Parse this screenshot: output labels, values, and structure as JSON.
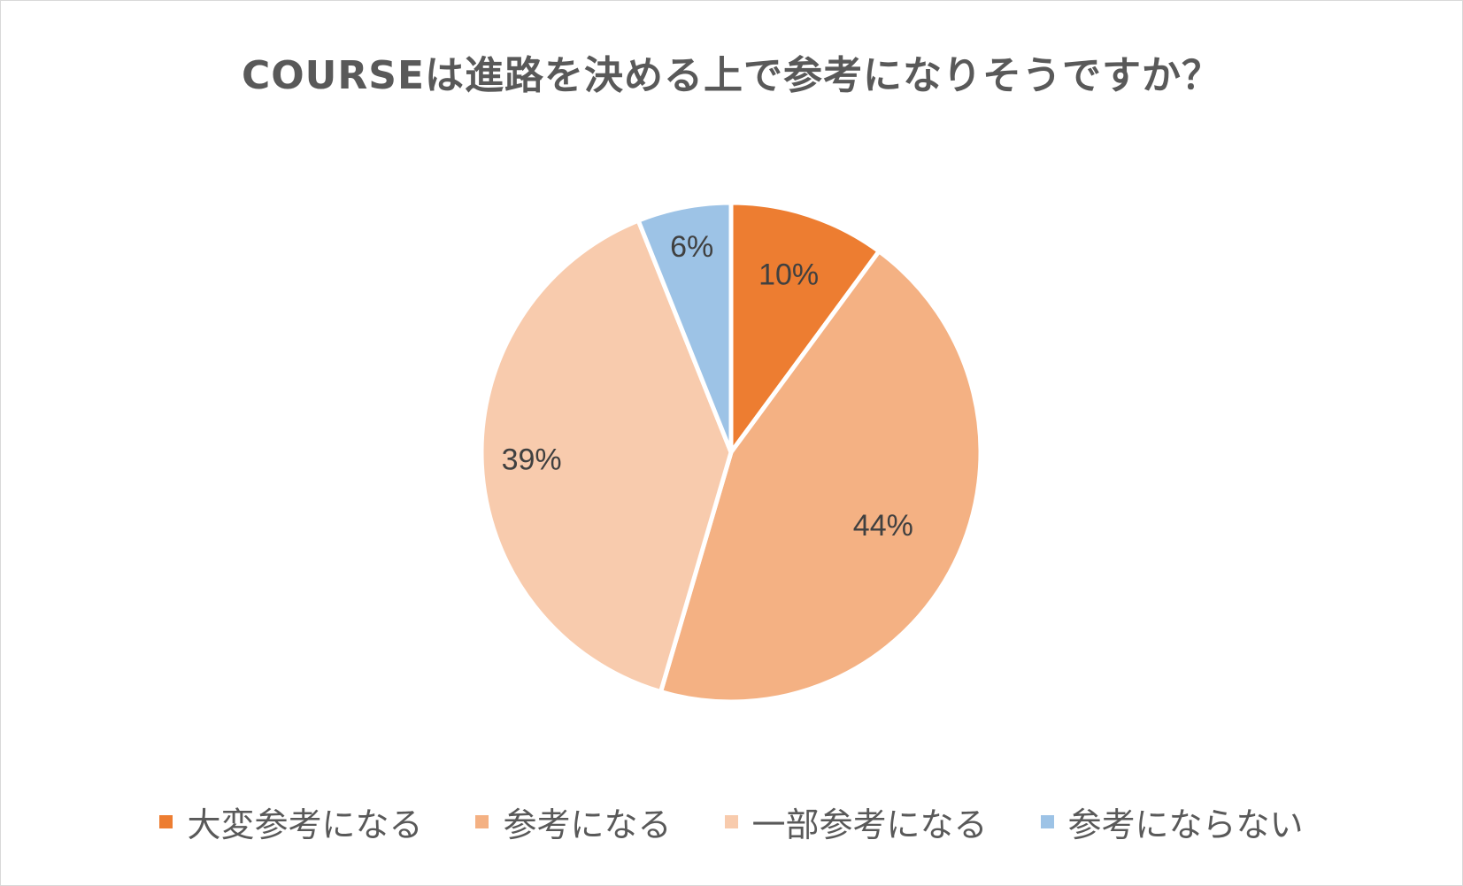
{
  "chart_data": {
    "type": "pie",
    "title": "COURSEは進路を決める上で参考になりそうですか？",
    "categories": [
      "大変参考になる",
      "参考になる",
      "一部参考になる",
      "参考にならない"
    ],
    "values": [
      10,
      44,
      39,
      6
    ],
    "labels": [
      "10%",
      "44%",
      "39%",
      "6%"
    ],
    "colors": [
      "#ED7D31",
      "#F4B183",
      "#F8CBAD",
      "#9DC3E6"
    ],
    "start_angle": "12 o'clock",
    "direction": "clockwise",
    "legend_position": "bottom"
  }
}
